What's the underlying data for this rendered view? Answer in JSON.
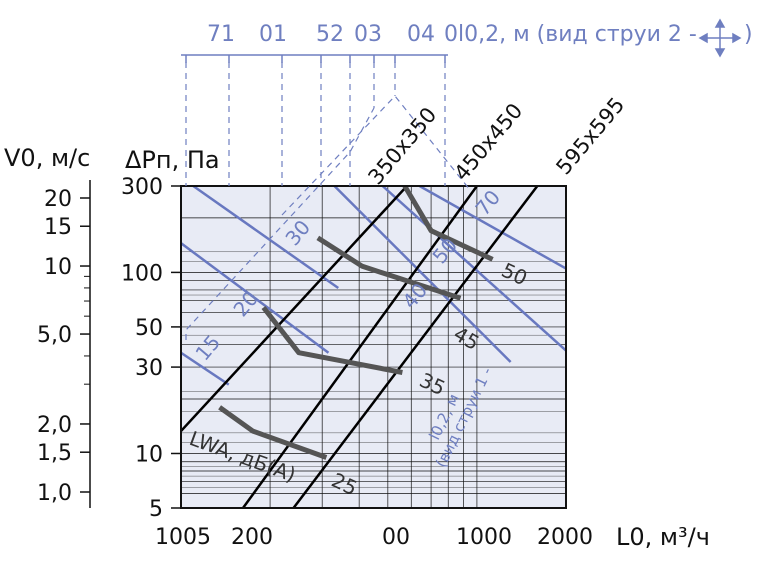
{
  "chart_data": {
    "type": "line",
    "title": "",
    "xlabel": "L0, м³/ч",
    "ylabel_pressure": "ΔPп, Па",
    "ylabel_velocity": "V0, м/с",
    "top_axis_label": "l0,2, м (вид струи 2 -",
    "jet_label": "l0,2, м",
    "jet_label2": "(вид струи 1 - ",
    "noise_label": "LWA, дБ(A)",
    "x_scale": "log",
    "y_scale": "log",
    "xlim": [
      100,
      2000
    ],
    "ylim": [
      5,
      300
    ],
    "x_tick_labels": [
      "1005",
      "200",
      "00",
      "1000",
      "2000"
    ],
    "y_tick_labels": [
      "5",
      "10",
      "30",
      "50",
      "100",
      "300"
    ],
    "y_tick_values": [
      5,
      10,
      30,
      50,
      100,
      300
    ],
    "velocity_tick_labels": [
      "1,0",
      "1,5",
      "2,0",
      "5,0",
      "10",
      "15",
      "20"
    ],
    "velocity_tick_values": [
      1.0,
      1.5,
      2.0,
      5.0,
      10,
      15,
      20
    ],
    "top_tick_labels": [
      "71",
      "01",
      "52",
      "03",
      "04",
      "0"
    ],
    "grid": true,
    "size_lines": [
      {
        "name": "350x350",
        "points": [
          [
            100,
            13.3
          ],
          [
            580,
            300
          ]
        ]
      },
      {
        "name": "450x450",
        "points": [
          [
            162,
            5
          ],
          [
            1000,
            300
          ]
        ]
      },
      {
        "name": "595x595",
        "points": [
          [
            240,
            5
          ],
          [
            1600,
            300
          ]
        ]
      }
    ],
    "jet_lines": [
      {
        "label": "15",
        "points": [
          [
            100,
            36
          ],
          [
            145,
            24
          ]
        ]
      },
      {
        "label": "20",
        "points": [
          [
            100,
            145
          ],
          [
            315,
            36
          ]
        ]
      },
      {
        "label": "30",
        "points": [
          [
            110,
            300
          ],
          [
            340,
            82
          ]
        ]
      },
      {
        "label": "40",
        "points": [
          [
            330,
            300
          ],
          [
            1300,
            32
          ]
        ]
      },
      {
        "label": "50",
        "points": [
          [
            480,
            300
          ],
          [
            2000,
            37
          ]
        ]
      },
      {
        "label": "70",
        "points": [
          [
            640,
            300
          ],
          [
            2000,
            105
          ]
        ]
      }
    ],
    "noise_curves": [
      {
        "label": "25",
        "points": [
          [
            135,
            18
          ],
          [
            175,
            13.3
          ],
          [
            310,
            9.5
          ]
        ]
      },
      {
        "label": "35",
        "points": [
          [
            190,
            64
          ],
          [
            250,
            36
          ],
          [
            560,
            28
          ]
        ]
      },
      {
        "label": "45",
        "points": [
          [
            290,
            155
          ],
          [
            410,
            108
          ],
          [
            880,
            72
          ]
        ]
      },
      {
        "label": "50",
        "points": [
          [
            570,
            300
          ],
          [
            700,
            170
          ],
          [
            1130,
            118
          ]
        ]
      }
    ]
  }
}
